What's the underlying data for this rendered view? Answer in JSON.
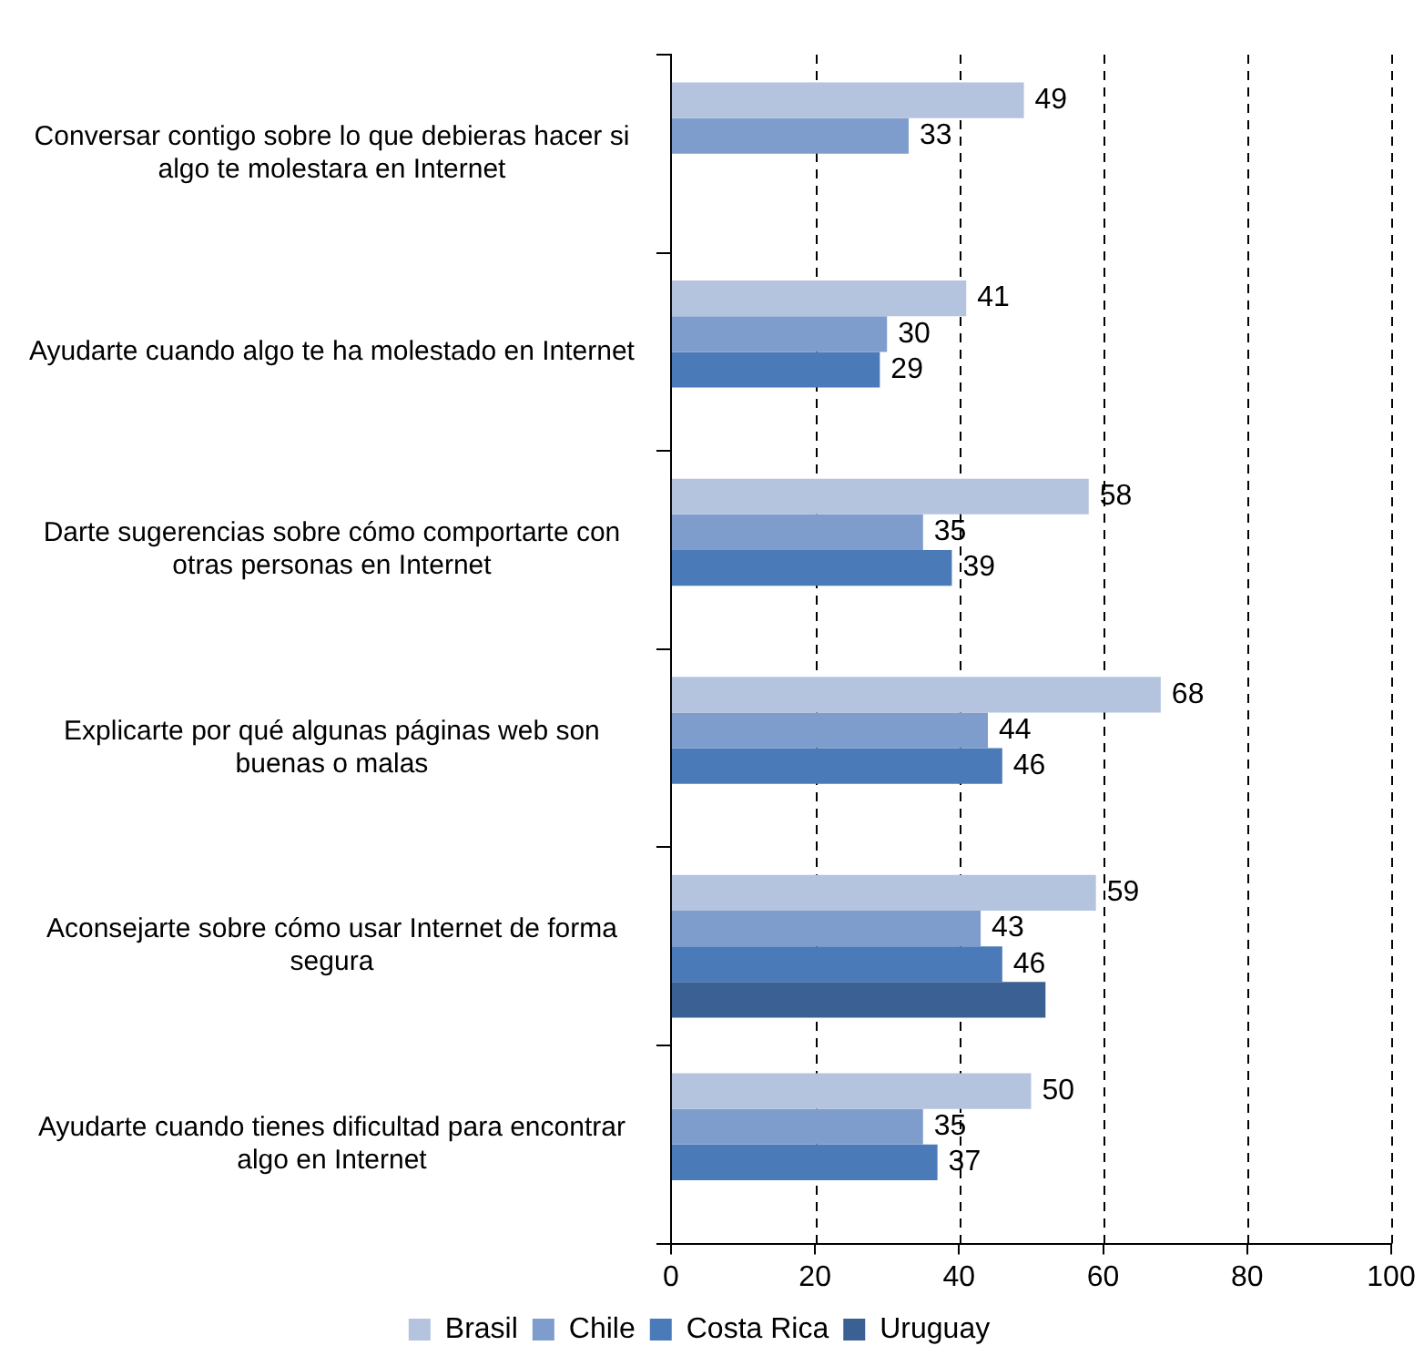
{
  "chart_data": {
    "type": "bar",
    "orientation": "horizontal",
    "categories": [
      "Conversar contigo sobre lo que debieras hacer si algo te molestara en Internet",
      "Ayudarte cuando algo te ha molestado en Internet",
      "Darte sugerencias sobre cómo comportarte con otras personas en Internet",
      "Explicarte por qué algunas páginas web son buenas o malas",
      "Aconsejarte sobre cómo usar Internet de forma segura",
      "Ayudarte cuando tienes dificultad para encontrar algo en Internet"
    ],
    "series": [
      {
        "name": "Brasil",
        "color": "#b4c3de",
        "values": [
          49,
          41,
          58,
          68,
          59,
          50
        ],
        "value_labels": [
          "49",
          "41",
          "58",
          "68",
          "59",
          "50"
        ]
      },
      {
        "name": "Chile",
        "color": "#7f9dcc",
        "values": [
          33,
          30,
          35,
          44,
          43,
          35
        ],
        "value_labels": [
          "33",
          "30",
          "35",
          "44",
          "43",
          "35"
        ]
      },
      {
        "name": "Costa Rica",
        "color": "#4a7ab8",
        "values": [
          null,
          29,
          39,
          46,
          46,
          37
        ],
        "value_labels": [
          null,
          "29",
          "39",
          "46",
          "46",
          "37"
        ]
      },
      {
        "name": "Uruguay",
        "color": "#3b6194",
        "values": [
          null,
          null,
          null,
          null,
          52,
          null
        ],
        "value_labels": [
          null,
          null,
          null,
          null,
          null,
          null
        ]
      }
    ],
    "xlim": [
      0,
      100
    ],
    "xticks": [
      0,
      20,
      40,
      60,
      80,
      100
    ],
    "grid": "x",
    "legend": "bottom"
  }
}
